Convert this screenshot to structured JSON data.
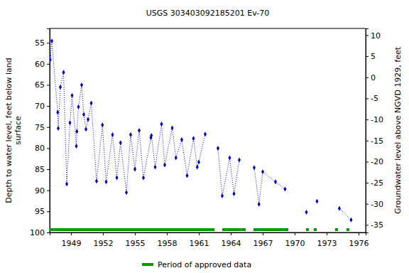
{
  "chart_data": {
    "type": "line",
    "title": "USGS 303403092185201 Ev-70",
    "y_label": [
      "Depth to water level, feet below land",
      "surface"
    ],
    "y2_label": "Groundwater level above NGVD 1929, feet",
    "x": [
      1947.0,
      1947.05,
      1947.2,
      1947.75,
      1947.8,
      1948.0,
      1948.3,
      1948.6,
      1948.9,
      1949.1,
      1949.5,
      1949.55,
      1949.7,
      1950.0,
      1950.2,
      1950.4,
      1950.6,
      1950.9,
      1951.4,
      1951.95,
      1952.3,
      1952.9,
      1953.3,
      1953.65,
      1954.2,
      1954.6,
      1955.0,
      1955.4,
      1955.8,
      1956.5,
      1956.55,
      1956.9,
      1957.5,
      1957.8,
      1958.5,
      1958.85,
      1959.4,
      1959.9,
      1960.5,
      1960.85,
      1961.0,
      1961.6,
      1962.2,
      1962.8,
      1963.2,
      1963.9,
      1964.3,
      1964.8,
      1965.5,
      1966.2,
      1966.65,
      1967.0,
      1968.2,
      1969.1,
      1970.0,
      1971.1,
      1971.6,
      1972.1,
      1973.0,
      1974.2,
      1975.3
    ],
    "series": [
      {
        "color": "#0000cc",
        "marker": "diamond",
        "line_style": "dotted",
        "values": [
          58,
          59,
          54.6,
          71.5,
          75.3,
          65.5,
          62,
          88.5,
          74,
          67.5,
          79.5,
          76,
          70.2,
          65,
          72,
          75.5,
          73.2,
          69.3,
          87.8,
          74.5,
          88,
          76.8,
          87,
          78.7,
          90.5,
          76.8,
          85,
          75.8,
          87,
          77.5,
          77,
          84.5,
          74.3,
          84,
          75.2,
          82.3,
          78,
          86.5,
          77.7,
          84.5,
          83.3,
          76.7,
          null,
          80,
          91.3,
          82.3,
          90.8,
          82.8,
          null,
          84.6,
          93.3,
          85.6,
          88,
          89.7,
          null,
          95.2,
          null,
          92.6,
          null,
          94.3,
          97
        ]
      }
    ],
    "approved_periods": {
      "name": "Period of approved data",
      "color": "#009900",
      "ranges": [
        [
          1947.0,
          1962.47
        ],
        [
          1963.2,
          1965.4
        ],
        [
          1966.13,
          1969.4
        ],
        [
          1971.07,
          1971.33
        ],
        [
          1971.8,
          1972.07
        ],
        [
          1973.8,
          1974.07
        ],
        [
          1974.87,
          1975.13
        ]
      ]
    },
    "xlim": [
      1947.0,
      1976.67
    ],
    "xticks": [
      1949,
      1952,
      1955,
      1958,
      1961,
      1964,
      1967,
      1970,
      1973,
      1976
    ],
    "ylim": [
      51.6,
      100
    ],
    "yticks": [
      55,
      60,
      65,
      70,
      75,
      80,
      85,
      90,
      95,
      100
    ],
    "y2lim": [
      11.6,
      -36.8
    ],
    "y2ticks": [
      10,
      5,
      0,
      -5,
      -10,
      -15,
      -20,
      -25,
      -30,
      -35
    ],
    "grid": false
  }
}
